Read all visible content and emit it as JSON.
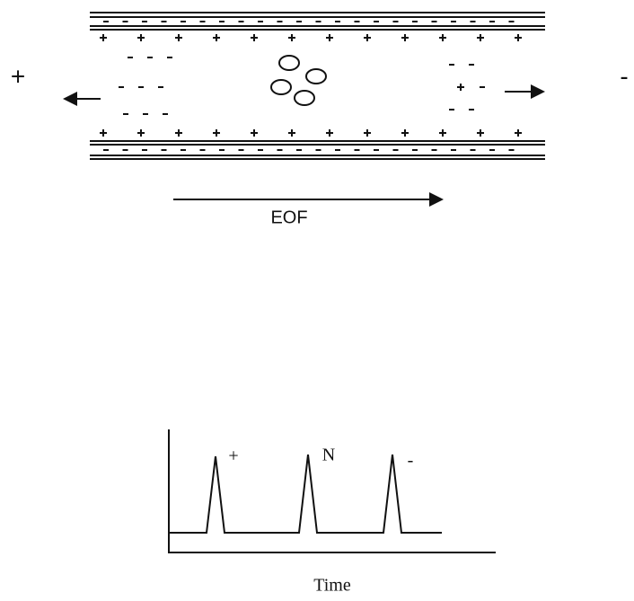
{
  "electrodes": {
    "left": "+",
    "right": "-"
  },
  "flow_label": "EOF",
  "detector": {
    "x_label": "Time",
    "peaks": [
      {
        "label": "+"
      },
      {
        "label": "N"
      },
      {
        "label": "-"
      }
    ]
  }
}
